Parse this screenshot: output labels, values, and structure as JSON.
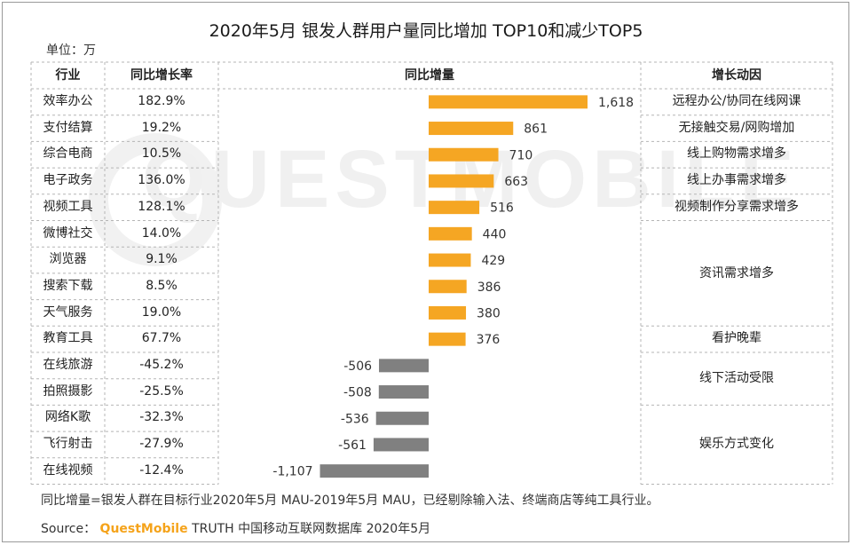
{
  "title": "2020年5月 银发人群用户量同比增加 TOP10和减少TOP5",
  "unit": "单位：万",
  "watermark": "QUESTMOBILE",
  "headers": {
    "industry": "行业",
    "growth_rate": "同比增长率",
    "increment": "同比增量",
    "driver": "增长动因"
  },
  "colors": {
    "positive": "#f5a623",
    "negative": "#808080",
    "brand": "#f5a31a"
  },
  "chart_data": {
    "type": "bar",
    "orientation": "horizontal",
    "title": "2020年5月 银发人群用户量同比增加 TOP10和减少TOP5",
    "ylabel": "同比增量",
    "unit": "万",
    "categories": [
      "效率办公",
      "支付结算",
      "综合电商",
      "电子政务",
      "视频工具",
      "微博社交",
      "浏览器",
      "搜索下载",
      "天气服务",
      "教育工具",
      "在线旅游",
      "拍照摄影",
      "网络K歌",
      "飞行射击",
      "在线视频"
    ],
    "values": [
      1618,
      861,
      710,
      663,
      516,
      440,
      429,
      386,
      380,
      376,
      -506,
      -508,
      -536,
      -561,
      -1107
    ],
    "value_labels": [
      "1,618",
      "861",
      "710",
      "663",
      "516",
      "440",
      "429",
      "386",
      "380",
      "376",
      "-506",
      "-508",
      "-536",
      "-561",
      "-1,107"
    ],
    "growth_rates": [
      "182.9%",
      "19.2%",
      "10.5%",
      "136.0%",
      "128.1%",
      "14.0%",
      "9.1%",
      "8.5%",
      "19.0%",
      "67.7%",
      "-45.2%",
      "-25.5%",
      "-32.3%",
      "-27.9%",
      "-12.4%"
    ],
    "drivers": [
      {
        "text": "远程办公/协同在线网课",
        "start": 0,
        "span": 1
      },
      {
        "text": "无接触交易/网购增加",
        "start": 1,
        "span": 1
      },
      {
        "text": "线上购物需求增多",
        "start": 2,
        "span": 1
      },
      {
        "text": "线上办事需求增多",
        "start": 3,
        "span": 1
      },
      {
        "text": "视频制作分享需求增多",
        "start": 4,
        "span": 1
      },
      {
        "text": "资讯需求增多",
        "start": 5,
        "span": 4
      },
      {
        "text": "看护晚辈",
        "start": 9,
        "span": 1
      },
      {
        "text": "线下活动受限",
        "start": 10,
        "span": 2
      },
      {
        "text": "娱乐方式变化",
        "start": 12,
        "span": 3
      }
    ]
  },
  "footnote": "同比增量=银发人群在目标行业2020年5月 MAU-2019年5月 MAU，已经剔除输入法、终端商店等纯工具行业。",
  "source": {
    "label": "Source：",
    "brand": "QuestMobile",
    "rest": "TRUTH 中国移动互联网数据库 2020年5月"
  }
}
